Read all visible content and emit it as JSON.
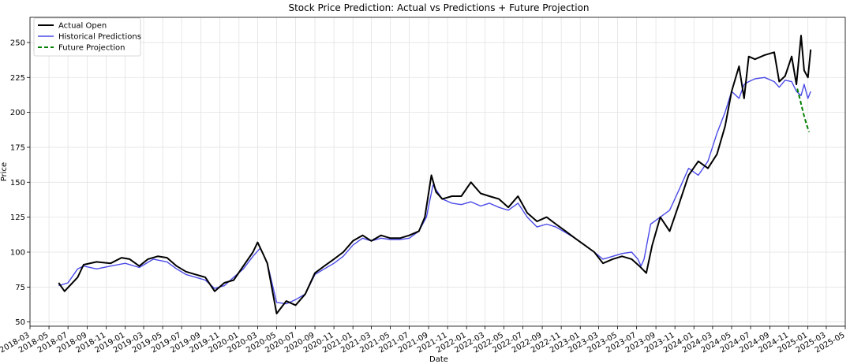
{
  "chart_data": {
    "type": "line",
    "title": "Stock Price Prediction: Actual vs Predictions + Future Projection",
    "xlabel": "Date",
    "ylabel": "Price",
    "xlim": [
      "2018-03-01",
      "2025-05-01"
    ],
    "ylim": [
      47,
      268
    ],
    "grid": true,
    "legend_position": "top-left",
    "x_ticks": [
      "2018-03",
      "2018-05",
      "2018-07",
      "2018-09",
      "2018-11",
      "2019-01",
      "2019-03",
      "2019-05",
      "2019-07",
      "2019-09",
      "2019-11",
      "2020-01",
      "2020-03",
      "2020-05",
      "2020-07",
      "2020-09",
      "2020-11",
      "2021-01",
      "2021-03",
      "2021-05",
      "2021-07",
      "2021-09",
      "2021-11",
      "2022-01",
      "2022-03",
      "2022-05",
      "2022-07",
      "2022-09",
      "2022-11",
      "2023-01",
      "2023-03",
      "2023-05",
      "2023-07",
      "2023-09",
      "2023-11",
      "2024-01",
      "2024-03",
      "2024-05",
      "2024-07",
      "2024-09",
      "2024-11",
      "2025-01",
      "2025-03",
      "2025-05"
    ],
    "y_ticks": [
      50,
      75,
      100,
      125,
      150,
      175,
      200,
      225,
      250
    ],
    "series": [
      {
        "name": "Actual Open",
        "color": "#000000",
        "style": "solid",
        "x": [
          "2018-06-01",
          "2018-06-20",
          "2018-08-01",
          "2018-08-20",
          "2018-10-01",
          "2018-11-15",
          "2018-12-20",
          "2019-01-15",
          "2019-02-15",
          "2019-03-15",
          "2019-04-15",
          "2019-05-15",
          "2019-06-15",
          "2019-07-15",
          "2019-08-15",
          "2019-09-15",
          "2019-10-15",
          "2019-11-15",
          "2019-12-15",
          "2020-01-15",
          "2020-02-15",
          "2020-03-01",
          "2020-03-20",
          "2020-04-01",
          "2020-05-01",
          "2020-06-01",
          "2020-07-01",
          "2020-08-01",
          "2020-09-01",
          "2020-10-01",
          "2020-11-01",
          "2020-12-01",
          "2021-01-01",
          "2021-02-01",
          "2021-03-01",
          "2021-04-01",
          "2021-05-01",
          "2021-06-01",
          "2021-07-01",
          "2021-08-01",
          "2021-08-20",
          "2021-09-10",
          "2021-09-25",
          "2021-10-15",
          "2021-11-15",
          "2021-12-15",
          "2022-01-15",
          "2022-02-15",
          "2022-03-15",
          "2022-04-15",
          "2022-05-15",
          "2022-06-15",
          "2022-07-15",
          "2022-08-15",
          "2022-09-15",
          "2022-10-15",
          "2022-11-15",
          "2022-12-15",
          "2023-01-15",
          "2023-02-15",
          "2023-03-15",
          "2023-04-15",
          "2023-05-15",
          "2023-06-15",
          "2023-07-10",
          "2023-08-01",
          "2023-08-20",
          "2023-09-15",
          "2023-10-15",
          "2023-11-15",
          "2023-12-15",
          "2024-01-15",
          "2024-02-15",
          "2024-03-15",
          "2024-04-10",
          "2024-05-01",
          "2024-05-25",
          "2024-06-10",
          "2024-06-25",
          "2024-07-15",
          "2024-08-15",
          "2024-09-15",
          "2024-10-01",
          "2024-10-20",
          "2024-11-10",
          "2024-11-25",
          "2024-12-10",
          "2024-12-20",
          "2025-01-01",
          "2025-01-10"
        ],
        "y": [
          78,
          72,
          82,
          91,
          93,
          92,
          96,
          95,
          90,
          95,
          97,
          96,
          90,
          86,
          84,
          82,
          72,
          78,
          80,
          90,
          100,
          107,
          98,
          92,
          56,
          65,
          62,
          70,
          85,
          90,
          95,
          100,
          108,
          112,
          108,
          112,
          110,
          110,
          112,
          115,
          125,
          155,
          143,
          138,
          140,
          140,
          150,
          142,
          140,
          138,
          132,
          140,
          128,
          122,
          125,
          120,
          115,
          110,
          105,
          100,
          92,
          95,
          97,
          95,
          90,
          85,
          105,
          125,
          115,
          135,
          155,
          165,
          160,
          170,
          190,
          215,
          233,
          210,
          240,
          238,
          241,
          243,
          222,
          226,
          240,
          220,
          255,
          230,
          225,
          245
        ]
      },
      {
        "name": "Historical Predictions",
        "color": "#4a4ae8",
        "style": "solid",
        "x": [
          "2018-06-01",
          "2018-07-01",
          "2018-08-01",
          "2018-08-20",
          "2018-10-01",
          "2018-11-15",
          "2019-01-01",
          "2019-02-15",
          "2019-04-01",
          "2019-05-15",
          "2019-06-15",
          "2019-07-15",
          "2019-08-15",
          "2019-09-15",
          "2019-10-15",
          "2019-11-15",
          "2019-12-15",
          "2020-01-15",
          "2020-02-15",
          "2020-03-10",
          "2020-04-01",
          "2020-05-01",
          "2020-06-01",
          "2020-07-01",
          "2020-08-01",
          "2020-09-01",
          "2020-10-01",
          "2020-11-01",
          "2020-12-01",
          "2021-01-01",
          "2021-02-01",
          "2021-03-01",
          "2021-04-01",
          "2021-05-01",
          "2021-06-01",
          "2021-07-01",
          "2021-08-01",
          "2021-08-25",
          "2021-09-15",
          "2021-10-15",
          "2021-11-15",
          "2021-12-15",
          "2022-01-15",
          "2022-02-15",
          "2022-03-15",
          "2022-04-15",
          "2022-05-15",
          "2022-06-15",
          "2022-07-15",
          "2022-08-15",
          "2022-09-15",
          "2022-10-15",
          "2022-11-15",
          "2022-12-15",
          "2023-01-15",
          "2023-02-15",
          "2023-03-15",
          "2023-04-15",
          "2023-05-15",
          "2023-06-15",
          "2023-07-05",
          "2023-07-15",
          "2023-07-25",
          "2023-08-15",
          "2023-09-15",
          "2023-10-15",
          "2023-11-15",
          "2023-12-15",
          "2024-01-15",
          "2024-02-15",
          "2024-03-15",
          "2024-04-10",
          "2024-05-01",
          "2024-05-25",
          "2024-06-10",
          "2024-06-25",
          "2024-07-15",
          "2024-08-15",
          "2024-09-15",
          "2024-10-01",
          "2024-10-20",
          "2024-11-10",
          "2024-11-25",
          "2024-12-10",
          "2024-12-20",
          "2025-01-01",
          "2025-01-10"
        ],
        "y": [
          76,
          78,
          88,
          90,
          88,
          90,
          92,
          89,
          95,
          93,
          88,
          84,
          82,
          80,
          74,
          76,
          82,
          88,
          97,
          103,
          92,
          64,
          63,
          66,
          70,
          84,
          88,
          92,
          97,
          105,
          110,
          108,
          110,
          109,
          109,
          110,
          115,
          125,
          148,
          138,
          135,
          134,
          136,
          133,
          135,
          132,
          130,
          135,
          125,
          118,
          120,
          118,
          114,
          110,
          105,
          100,
          95,
          97,
          99,
          100,
          95,
          90,
          95,
          120,
          125,
          130,
          145,
          160,
          155,
          165,
          185,
          200,
          215,
          210,
          220,
          222,
          224,
          225,
          222,
          218,
          223,
          222,
          215,
          212,
          220,
          210,
          215
        ]
      },
      {
        "name": "Future Projection",
        "color": "#008000",
        "style": "dashed",
        "x": [
          "2024-11-28",
          "2024-12-08",
          "2024-12-18",
          "2024-12-28",
          "2025-01-05"
        ],
        "y": [
          217,
          208,
          199,
          191,
          186
        ]
      }
    ]
  }
}
